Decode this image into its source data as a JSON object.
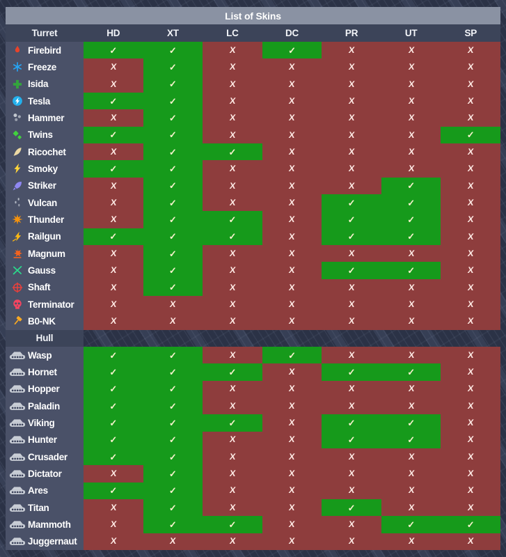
{
  "title": "List of Skins",
  "columns": [
    "HD",
    "XT",
    "LC",
    "DC",
    "PR",
    "UT",
    "SP"
  ],
  "check_mark": "✓",
  "cross_mark": "X",
  "colors": {
    "available_bg": "#169a1b",
    "unavailable_bg": "#8e3d3d",
    "check": "#f7f3cd",
    "cross": "#ffe9e4",
    "header_bg": "#3c4459",
    "row_label_bg": "#4a5168",
    "title_bar_bg": "#8a92a3"
  },
  "sections": [
    {
      "label": "Turret",
      "rows": [
        {
          "name": "Firebird",
          "icon": "flame-icon",
          "icon_color": "#e8432a",
          "skins": [
            1,
            1,
            0,
            1,
            0,
            0,
            0
          ]
        },
        {
          "name": "Freeze",
          "icon": "snowflake-icon",
          "icon_color": "#27a3f2",
          "skins": [
            0,
            1,
            0,
            0,
            0,
            0,
            0
          ]
        },
        {
          "name": "Isida",
          "icon": "plus-icon",
          "icon_color": "#33a43c",
          "skins": [
            0,
            1,
            0,
            0,
            0,
            0,
            0
          ]
        },
        {
          "name": "Tesla",
          "icon": "tesla-icon",
          "icon_color": "#23b0ec",
          "skins": [
            1,
            1,
            0,
            0,
            0,
            0,
            0
          ]
        },
        {
          "name": "Hammer",
          "icon": "pellets-icon",
          "icon_color": "#c2c7cf",
          "skins": [
            0,
            1,
            0,
            0,
            0,
            0,
            0
          ]
        },
        {
          "name": "Twins",
          "icon": "twin-diamonds-icon",
          "icon_color": "#41d23e",
          "skins": [
            1,
            1,
            0,
            0,
            0,
            0,
            1
          ]
        },
        {
          "name": "Ricochet",
          "icon": "feather-icon",
          "icon_color": "#ecd9a4",
          "skins": [
            0,
            1,
            1,
            0,
            0,
            0,
            0
          ]
        },
        {
          "name": "Smoky",
          "icon": "lightning-icon",
          "icon_color": "#ffd43a",
          "skins": [
            1,
            1,
            0,
            0,
            0,
            0,
            0
          ]
        },
        {
          "name": "Striker",
          "icon": "rocket-icon",
          "icon_color": "#8f87f2",
          "skins": [
            0,
            1,
            0,
            0,
            0,
            1,
            0
          ]
        },
        {
          "name": "Vulcan",
          "icon": "tracer-dashes-icon",
          "icon_color": "#b3b9c4",
          "skins": [
            0,
            1,
            0,
            0,
            1,
            1,
            0
          ]
        },
        {
          "name": "Thunder",
          "icon": "starburst-icon",
          "icon_color": "#f5920d",
          "skins": [
            0,
            1,
            1,
            0,
            1,
            1,
            0
          ]
        },
        {
          "name": "Railgun",
          "icon": "railgun-bolt-icon",
          "icon_color": "#fdb813",
          "skins": [
            1,
            1,
            1,
            0,
            1,
            1,
            0
          ]
        },
        {
          "name": "Magnum",
          "icon": "magnum-burst-icon",
          "icon_color": "#f4631e",
          "skins": [
            0,
            1,
            0,
            0,
            0,
            0,
            0
          ]
        },
        {
          "name": "Gauss",
          "icon": "crossed-arrows-icon",
          "icon_color": "#2bd98c",
          "skins": [
            0,
            1,
            0,
            0,
            1,
            1,
            0
          ]
        },
        {
          "name": "Shaft",
          "icon": "crosshair-icon",
          "icon_color": "#e8403c",
          "skins": [
            0,
            1,
            0,
            0,
            0,
            0,
            0
          ]
        },
        {
          "name": "Terminator",
          "icon": "skull-icon",
          "icon_color": "#f24460",
          "skins": [
            0,
            0,
            0,
            0,
            0,
            0,
            0
          ]
        },
        {
          "name": "B0-NK",
          "icon": "hammer-icon",
          "icon_color": "#f7a823",
          "skins": [
            0,
            0,
            0,
            0,
            0,
            0,
            0
          ]
        }
      ]
    },
    {
      "label": "Hull",
      "rows": [
        {
          "name": "Wasp",
          "icon": "tank-icon",
          "icon_color": "#c9ced6",
          "skins": [
            1,
            1,
            0,
            1,
            0,
            0,
            0
          ]
        },
        {
          "name": "Hornet",
          "icon": "tank-icon",
          "icon_color": "#c9ced6",
          "skins": [
            1,
            1,
            1,
            0,
            1,
            1,
            0
          ]
        },
        {
          "name": "Hopper",
          "icon": "tank-icon",
          "icon_color": "#c9ced6",
          "skins": [
            1,
            1,
            0,
            0,
            0,
            0,
            0
          ]
        },
        {
          "name": "Paladin",
          "icon": "tank-icon",
          "icon_color": "#c9ced6",
          "skins": [
            1,
            1,
            0,
            0,
            0,
            0,
            0
          ]
        },
        {
          "name": "Viking",
          "icon": "tank-icon",
          "icon_color": "#c9ced6",
          "skins": [
            1,
            1,
            1,
            0,
            1,
            1,
            0
          ]
        },
        {
          "name": "Hunter",
          "icon": "tank-icon",
          "icon_color": "#c9ced6",
          "skins": [
            1,
            1,
            0,
            0,
            1,
            1,
            0
          ]
        },
        {
          "name": "Crusader",
          "icon": "tank-icon",
          "icon_color": "#c9ced6",
          "skins": [
            1,
            1,
            0,
            0,
            0,
            0,
            0
          ]
        },
        {
          "name": "Dictator",
          "icon": "tank-icon",
          "icon_color": "#c9ced6",
          "skins": [
            0,
            1,
            0,
            0,
            0,
            0,
            0
          ]
        },
        {
          "name": "Ares",
          "icon": "tank-icon",
          "icon_color": "#c9ced6",
          "skins": [
            1,
            1,
            0,
            0,
            0,
            0,
            0
          ]
        },
        {
          "name": "Titan",
          "icon": "tank-icon",
          "icon_color": "#c9ced6",
          "skins": [
            0,
            1,
            0,
            0,
            1,
            0,
            0
          ]
        },
        {
          "name": "Mammoth",
          "icon": "tank-icon",
          "icon_color": "#c9ced6",
          "skins": [
            0,
            1,
            1,
            0,
            0,
            1,
            1
          ]
        },
        {
          "name": "Juggernaut",
          "icon": "tank-icon",
          "icon_color": "#c9ced6",
          "skins": [
            0,
            0,
            0,
            0,
            0,
            0,
            0
          ]
        }
      ]
    }
  ]
}
